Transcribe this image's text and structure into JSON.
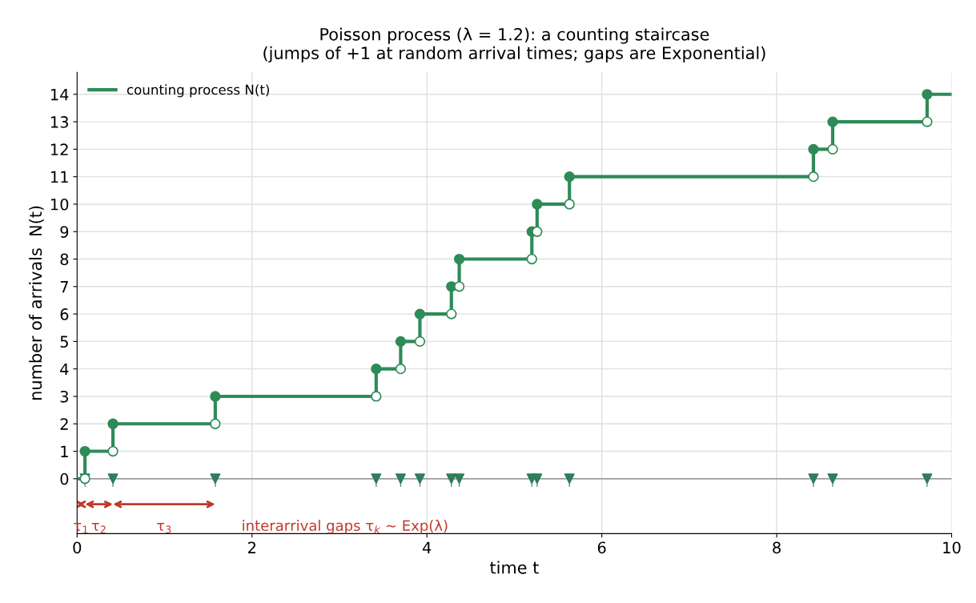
{
  "chart_data": {
    "type": "step",
    "title": "Poisson process (λ = 1.2): a counting staircase\n(jumps of +1 at random arrival times; gaps are Exponential)",
    "xlabel": "time t",
    "ylabel": "number of arrivals  N(t)",
    "series": [
      {
        "name": "counting process N(t)",
        "color": "#2e8b57",
        "marker": "none",
        "x": [
          0,
          0.09,
          0.41,
          1.58,
          3.42,
          3.7,
          3.92,
          4.28,
          4.37,
          5.2,
          5.26,
          5.63,
          8.42,
          8.64,
          9.72,
          10
        ],
        "values": [
          0,
          1,
          2,
          3,
          4,
          5,
          6,
          7,
          8,
          9,
          10,
          11,
          12,
          13,
          14,
          14
        ]
      },
      {
        "type": "scatter",
        "color": "#2e8b57",
        "marker": "circle",
        "x": [
          0.09,
          0.41,
          1.58,
          3.42,
          3.7,
          3.92,
          4.28,
          4.37,
          5.2,
          5.26,
          5.63,
          8.42,
          8.64,
          9.72
        ],
        "values": [
          1,
          2,
          3,
          4,
          5,
          6,
          7,
          8,
          9,
          10,
          11,
          12,
          13,
          14
        ]
      },
      {
        "type": "scatter",
        "color": "#ffffff",
        "marker": "circle",
        "x": [
          0.09,
          0.41,
          1.58,
          3.42,
          3.7,
          3.92,
          4.28,
          4.37,
          5.2,
          5.26,
          5.63,
          8.42,
          8.64,
          9.72
        ],
        "values": [
          0,
          1,
          2,
          3,
          4,
          5,
          6,
          7,
          8,
          9,
          10,
          11,
          12,
          13
        ]
      },
      {
        "type": "scatter",
        "color": "#2e7d5b",
        "marker": "triangle",
        "x": [
          0.09,
          0.41,
          1.58,
          3.42,
          3.7,
          3.92,
          4.28,
          4.37,
          5.2,
          5.26,
          5.63,
          8.42,
          8.64,
          9.72
        ],
        "values": [
          0,
          0,
          0,
          0,
          0,
          0,
          0,
          0,
          0,
          0,
          0,
          0,
          0,
          0
        ]
      }
    ],
    "ref_lines": [
      {
        "axis": "y",
        "value": 0,
        "color": "#808080"
      }
    ],
    "annotations": [
      "τ$_{1}$",
      "τ$_{2}$",
      "τ$_{3}$",
      "interarrival gaps τ$_{k}$ ~ Exp(λ)"
    ],
    "xlim": [
      0,
      10
    ],
    "xticks": [
      0,
      2,
      4,
      6,
      8,
      10
    ],
    "ylim": [
      -2,
      14.8
    ],
    "yticks": [
      0,
      1,
      2,
      3,
      4,
      5,
      6,
      7,
      8,
      9,
      10,
      11,
      12,
      13,
      14
    ],
    "grid": true,
    "legend": "top left"
  }
}
